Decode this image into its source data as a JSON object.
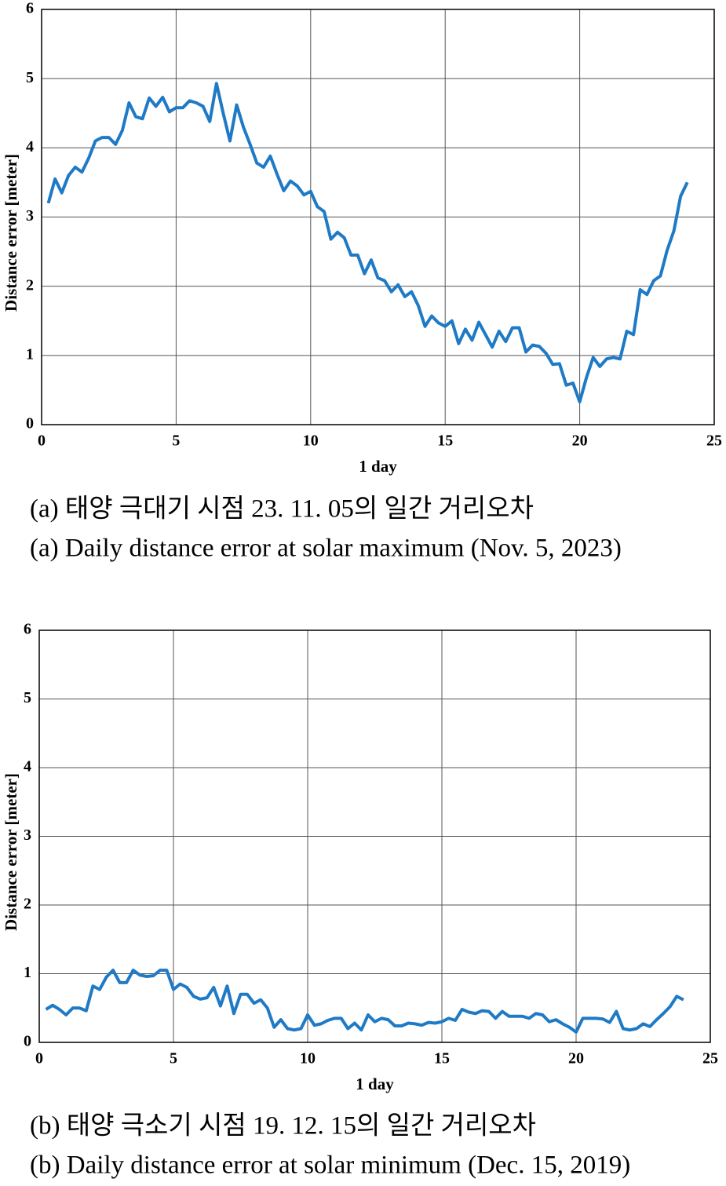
{
  "chart_data": [
    {
      "type": "line",
      "caption_ko": "(a) 태양 극대기 시점 23. 11. 05의 일간 거리오차",
      "caption_en": "(a) Daily distance error at solar maximum (Nov. 5, 2023)",
      "xlabel": "1 day",
      "ylabel": "Distance error [meter]",
      "grid": true,
      "xlim": [
        0,
        25
      ],
      "xticks": [
        0,
        5,
        10,
        15,
        20,
        25
      ],
      "ylim": [
        0,
        6
      ],
      "yticks": [
        0,
        1,
        2,
        3,
        4,
        5,
        6
      ],
      "x": [
        0.25,
        0.5,
        0.75,
        1,
        1.25,
        1.5,
        1.75,
        2,
        2.25,
        2.5,
        2.75,
        3,
        3.25,
        3.5,
        3.75,
        4,
        4.25,
        4.5,
        4.75,
        5,
        5.25,
        5.5,
        5.75,
        6,
        6.25,
        6.5,
        6.75,
        7,
        7.25,
        7.5,
        7.75,
        8,
        8.25,
        8.5,
        8.75,
        9,
        9.25,
        9.5,
        9.75,
        10,
        10.25,
        10.5,
        10.75,
        11,
        11.25,
        11.5,
        11.75,
        12,
        12.25,
        12.5,
        12.75,
        13,
        13.25,
        13.5,
        13.75,
        14,
        14.25,
        14.5,
        14.75,
        15,
        15.25,
        15.5,
        15.75,
        16,
        16.25,
        16.5,
        16.75,
        17,
        17.25,
        17.5,
        17.75,
        18,
        18.25,
        18.5,
        18.75,
        19,
        19.25,
        19.5,
        19.75,
        20,
        20.25,
        20.5,
        20.75,
        21,
        21.25,
        21.5,
        21.75,
        22,
        22.25,
        22.5,
        22.75,
        23,
        23.25,
        23.5,
        23.75,
        24
      ],
      "series": [
        {
          "color": "#1f7ac6",
          "values": [
            3.2,
            3.55,
            3.35,
            3.6,
            3.72,
            3.65,
            3.85,
            4.1,
            4.15,
            4.15,
            4.05,
            4.25,
            4.65,
            4.45,
            4.42,
            4.72,
            4.6,
            4.73,
            4.52,
            4.58,
            4.58,
            4.68,
            4.65,
            4.6,
            4.38,
            4.93,
            4.5,
            4.1,
            4.62,
            4.3,
            4.05,
            3.78,
            3.72,
            3.88,
            3.62,
            3.38,
            3.52,
            3.45,
            3.32,
            3.37,
            3.15,
            3.08,
            2.68,
            2.78,
            2.7,
            2.45,
            2.45,
            2.18,
            2.38,
            2.12,
            2.08,
            1.92,
            2.02,
            1.85,
            1.92,
            1.72,
            1.42,
            1.57,
            1.47,
            1.42,
            1.5,
            1.17,
            1.38,
            1.22,
            1.48,
            1.3,
            1.12,
            1.35,
            1.2,
            1.4,
            1.4,
            1.05,
            1.15,
            1.13,
            1.03,
            0.87,
            0.88,
            0.57,
            0.6,
            0.33,
            0.68,
            0.97,
            0.84,
            0.95,
            0.97,
            0.95,
            1.35,
            1.3,
            1.95,
            1.88,
            2.08,
            2.15,
            2.52,
            2.8,
            3.3,
            3.5
          ]
        }
      ]
    },
    {
      "type": "line",
      "caption_ko": "(b) 태양 극소기 시점 19. 12. 15의 일간 거리오차",
      "caption_en": "(b) Daily distance error at solar minimum (Dec. 15, 2019)",
      "xlabel": "1 day",
      "ylabel": "Distance error [meter]",
      "grid": true,
      "xlim": [
        0,
        25
      ],
      "xticks": [
        0,
        5,
        10,
        15,
        20,
        25
      ],
      "ylim": [
        0,
        6
      ],
      "yticks": [
        0,
        1,
        2,
        3,
        4,
        5,
        6
      ],
      "x": [
        0.25,
        0.5,
        0.75,
        1,
        1.25,
        1.5,
        1.75,
        2,
        2.25,
        2.5,
        2.75,
        3,
        3.25,
        3.5,
        3.75,
        4,
        4.25,
        4.5,
        4.75,
        5,
        5.25,
        5.5,
        5.75,
        6,
        6.25,
        6.5,
        6.75,
        7,
        7.25,
        7.5,
        7.75,
        8,
        8.25,
        8.5,
        8.75,
        9,
        9.25,
        9.5,
        9.75,
        10,
        10.25,
        10.5,
        10.75,
        11,
        11.25,
        11.5,
        11.75,
        12,
        12.25,
        12.5,
        12.75,
        13,
        13.25,
        13.5,
        13.75,
        14,
        14.25,
        14.5,
        14.75,
        15,
        15.25,
        15.5,
        15.75,
        16,
        16.25,
        16.5,
        16.75,
        17,
        17.25,
        17.5,
        17.75,
        18,
        18.25,
        18.5,
        18.75,
        19,
        19.25,
        19.5,
        19.75,
        20,
        20.25,
        20.5,
        20.75,
        21,
        21.25,
        21.5,
        21.75,
        22,
        22.25,
        22.5,
        22.75,
        23,
        23.25,
        23.5,
        23.75,
        24
      ],
      "series": [
        {
          "color": "#1f7ac6",
          "values": [
            0.48,
            0.54,
            0.48,
            0.4,
            0.5,
            0.5,
            0.46,
            0.82,
            0.77,
            0.95,
            1.05,
            0.87,
            0.87,
            1.05,
            0.98,
            0.96,
            0.97,
            1.05,
            1.05,
            0.77,
            0.85,
            0.8,
            0.67,
            0.63,
            0.65,
            0.8,
            0.53,
            0.82,
            0.42,
            0.7,
            0.7,
            0.57,
            0.62,
            0.5,
            0.22,
            0.33,
            0.2,
            0.18,
            0.2,
            0.4,
            0.25,
            0.27,
            0.32,
            0.35,
            0.35,
            0.2,
            0.28,
            0.18,
            0.4,
            0.3,
            0.35,
            0.33,
            0.24,
            0.24,
            0.28,
            0.27,
            0.25,
            0.29,
            0.28,
            0.3,
            0.35,
            0.32,
            0.48,
            0.44,
            0.42,
            0.46,
            0.45,
            0.35,
            0.45,
            0.38,
            0.38,
            0.38,
            0.35,
            0.42,
            0.4,
            0.3,
            0.33,
            0.27,
            0.22,
            0.15,
            0.35,
            0.35,
            0.35,
            0.34,
            0.29,
            0.45,
            0.2,
            0.18,
            0.2,
            0.27,
            0.23,
            0.33,
            0.42,
            0.52,
            0.67,
            0.62
          ]
        }
      ]
    }
  ]
}
